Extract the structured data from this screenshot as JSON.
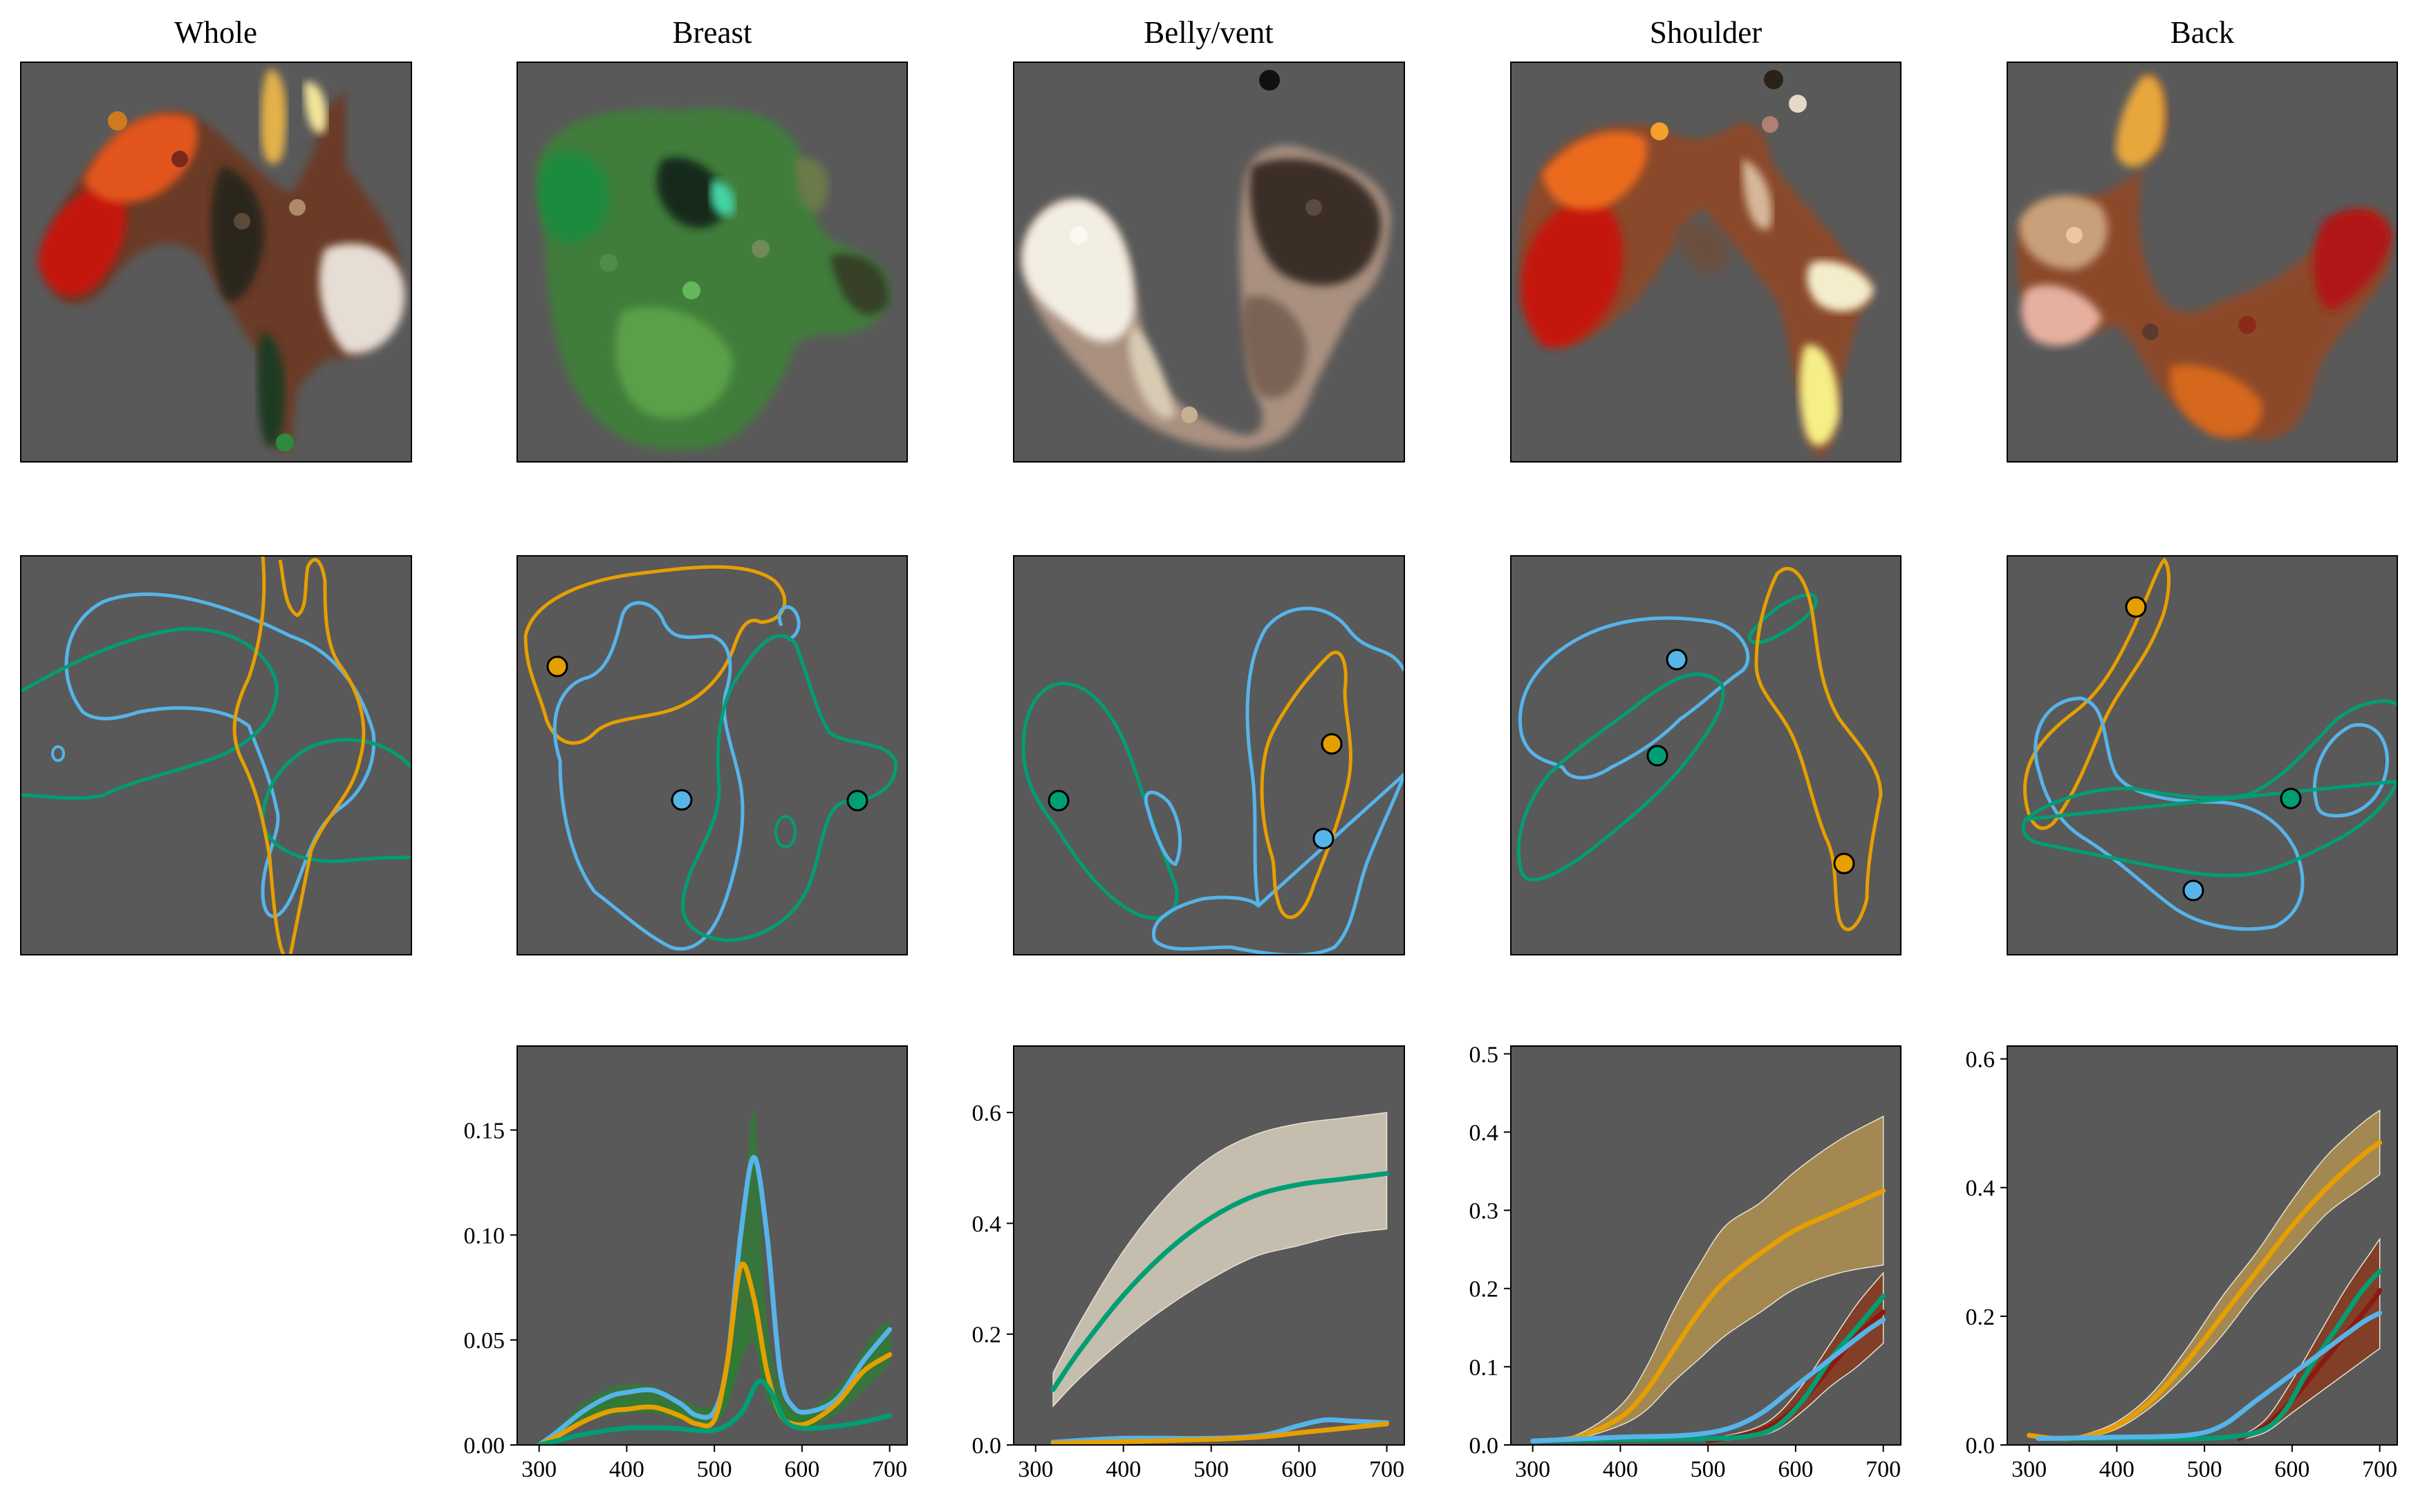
{
  "columns": [
    "Whole",
    "Breast",
    "Belly/vent",
    "Shoulder",
    "Back"
  ],
  "colors": {
    "panel_bg": "#595959",
    "orange": "#E69F00",
    "skyblue": "#56B4E9",
    "green": "#009E73",
    "red": "#8B1A10"
  },
  "chart_data": [
    {
      "type": "line",
      "column": "Breast",
      "xlim": [
        275,
        720
      ],
      "ylim": [
        0,
        0.19
      ],
      "xticks": [
        300,
        400,
        500,
        600,
        700
      ],
      "yticks": [
        0.0,
        0.05,
        0.1,
        0.15
      ],
      "ytick_labels": [
        "0.00",
        "0.05",
        "0.10",
        "0.15"
      ],
      "grid": false,
      "series": [
        {
          "color": "#2E7D32",
          "band": true,
          "x": [
            300,
            320,
            350,
            380,
            400,
            430,
            460,
            490,
            510,
            530,
            545,
            560,
            580,
            600,
            620,
            650,
            680,
            700
          ],
          "y": [
            0.0,
            0.005,
            0.014,
            0.019,
            0.02,
            0.02,
            0.016,
            0.013,
            0.02,
            0.05,
            0.06,
            0.03,
            0.016,
            0.012,
            0.014,
            0.024,
            0.04,
            0.048
          ],
          "band_lo": [
            0.0,
            0.003,
            0.01,
            0.014,
            0.015,
            0.015,
            0.012,
            0.01,
            0.014,
            0.038,
            0.048,
            0.022,
            0.012,
            0.008,
            0.01,
            0.018,
            0.03,
            0.038
          ],
          "band_hi": [
            0.0,
            0.008,
            0.02,
            0.027,
            0.029,
            0.028,
            0.022,
            0.018,
            0.028,
            0.09,
            0.16,
            0.06,
            0.022,
            0.017,
            0.02,
            0.032,
            0.052,
            0.06
          ]
        },
        {
          "color": "#56B4E9",
          "x": [
            300,
            320,
            350,
            380,
            400,
            430,
            460,
            480,
            500,
            515,
            530,
            545,
            560,
            575,
            590,
            610,
            640,
            670,
            700
          ],
          "y": [
            0.0,
            0.006,
            0.016,
            0.023,
            0.025,
            0.026,
            0.02,
            0.014,
            0.016,
            0.04,
            0.1,
            0.137,
            0.1,
            0.035,
            0.018,
            0.016,
            0.022,
            0.04,
            0.055
          ]
        },
        {
          "color": "#E69F00",
          "x": [
            300,
            320,
            350,
            380,
            400,
            430,
            460,
            480,
            500,
            515,
            530,
            545,
            560,
            575,
            590,
            610,
            640,
            670,
            700
          ],
          "y": [
            0.0,
            0.004,
            0.011,
            0.016,
            0.017,
            0.018,
            0.014,
            0.01,
            0.012,
            0.04,
            0.085,
            0.07,
            0.035,
            0.015,
            0.01,
            0.011,
            0.02,
            0.035,
            0.043
          ]
        },
        {
          "color": "#009E73",
          "x": [
            300,
            320,
            350,
            400,
            450,
            500,
            530,
            550,
            565,
            580,
            600,
            640,
            670,
            700
          ],
          "y": [
            0.0,
            0.002,
            0.005,
            0.008,
            0.008,
            0.007,
            0.015,
            0.03,
            0.025,
            0.012,
            0.008,
            0.009,
            0.011,
            0.014
          ]
        }
      ]
    },
    {
      "type": "line",
      "column": "Belly/vent",
      "xlim": [
        275,
        720
      ],
      "ylim": [
        0,
        0.72
      ],
      "xticks": [
        300,
        400,
        500,
        600,
        700
      ],
      "yticks": [
        0.0,
        0.2,
        0.4,
        0.6
      ],
      "ytick_labels": [
        "0.0",
        "0.2",
        "0.4",
        "0.6"
      ],
      "grid": false,
      "series": [
        {
          "color": "#009E73",
          "band": true,
          "band_color": "#D8CFBD",
          "x": [
            320,
            350,
            400,
            450,
            500,
            550,
            600,
            650,
            700
          ],
          "y": [
            0.1,
            0.17,
            0.27,
            0.35,
            0.41,
            0.45,
            0.47,
            0.48,
            0.49
          ],
          "band_lo": [
            0.07,
            0.12,
            0.19,
            0.25,
            0.3,
            0.34,
            0.36,
            0.38,
            0.39
          ],
          "band_hi": [
            0.13,
            0.22,
            0.35,
            0.45,
            0.52,
            0.56,
            0.58,
            0.59,
            0.6
          ]
        },
        {
          "color": "#56B4E9",
          "x": [
            320,
            400,
            500,
            560,
            600,
            630,
            660,
            700
          ],
          "y": [
            0.005,
            0.012,
            0.012,
            0.018,
            0.035,
            0.045,
            0.043,
            0.04
          ]
        },
        {
          "color": "#E69F00",
          "x": [
            320,
            400,
            500,
            560,
            600,
            650,
            700
          ],
          "y": [
            0.003,
            0.006,
            0.01,
            0.015,
            0.022,
            0.03,
            0.038
          ]
        }
      ]
    },
    {
      "type": "line",
      "column": "Shoulder",
      "xlim": [
        275,
        720
      ],
      "ylim": [
        0,
        0.51
      ],
      "xticks": [
        300,
        400,
        500,
        600,
        700
      ],
      "yticks": [
        0.0,
        0.1,
        0.2,
        0.3,
        0.4,
        0.5
      ],
      "ytick_labels": [
        "0.0",
        "0.1",
        "0.2",
        "0.3",
        "0.4",
        "0.5"
      ],
      "grid": false,
      "series": [
        {
          "color": "#E69F00",
          "band": true,
          "band_color": "#B09150",
          "x": [
            300,
            350,
            400,
            430,
            460,
            490,
            520,
            560,
            600,
            650,
            700
          ],
          "y": [
            0.005,
            0.01,
            0.035,
            0.07,
            0.12,
            0.17,
            0.21,
            0.245,
            0.275,
            0.3,
            0.325
          ],
          "band_lo": [
            0.004,
            0.008,
            0.025,
            0.045,
            0.08,
            0.11,
            0.14,
            0.17,
            0.2,
            0.22,
            0.23
          ],
          "band_hi": [
            0.006,
            0.013,
            0.05,
            0.1,
            0.17,
            0.23,
            0.28,
            0.31,
            0.35,
            0.39,
            0.42
          ]
        },
        {
          "color": "#8B1A10",
          "band": true,
          "band_color": "#8A3A1E",
          "x": [
            500,
            550,
            580,
            610,
            640,
            670,
            700
          ],
          "y": [
            0.005,
            0.015,
            0.03,
            0.06,
            0.1,
            0.14,
            0.17
          ],
          "band_lo": [
            0.004,
            0.01,
            0.02,
            0.045,
            0.075,
            0.1,
            0.13
          ],
          "band_hi": [
            0.007,
            0.02,
            0.04,
            0.08,
            0.13,
            0.18,
            0.22
          ]
        },
        {
          "color": "#009E73",
          "x": [
            300,
            400,
            500,
            550,
            580,
            610,
            640,
            670,
            700
          ],
          "y": [
            0.005,
            0.007,
            0.008,
            0.012,
            0.025,
            0.06,
            0.11,
            0.15,
            0.19
          ]
        },
        {
          "color": "#56B4E9",
          "x": [
            300,
            400,
            470,
            520,
            560,
            600,
            640,
            680,
            700
          ],
          "y": [
            0.005,
            0.01,
            0.012,
            0.02,
            0.04,
            0.075,
            0.11,
            0.145,
            0.16
          ]
        }
      ]
    },
    {
      "type": "line",
      "column": "Back",
      "xlim": [
        275,
        720
      ],
      "ylim": [
        0,
        0.62
      ],
      "xticks": [
        300,
        400,
        500,
        600,
        700
      ],
      "yticks": [
        0.0,
        0.2,
        0.4,
        0.6
      ],
      "ytick_labels": [
        "0.0",
        "0.2",
        "0.4",
        "0.6"
      ],
      "grid": false,
      "series": [
        {
          "color": "#E69F00",
          "band": true,
          "band_color": "#B09150",
          "x": [
            300,
            330,
            360,
            400,
            440,
            480,
            520,
            560,
            600,
            640,
            680,
            700
          ],
          "y": [
            0.015,
            0.01,
            0.012,
            0.03,
            0.07,
            0.13,
            0.2,
            0.27,
            0.34,
            0.4,
            0.45,
            0.47
          ],
          "band_lo": [
            0.012,
            0.008,
            0.01,
            0.025,
            0.06,
            0.11,
            0.17,
            0.24,
            0.3,
            0.36,
            0.4,
            0.42
          ],
          "band_hi": [
            0.018,
            0.012,
            0.015,
            0.036,
            0.08,
            0.15,
            0.23,
            0.3,
            0.38,
            0.45,
            0.5,
            0.52
          ]
        },
        {
          "color": "#8B1A10",
          "band": true,
          "band_color": "#8A3A1E",
          "x": [
            540,
            570,
            600,
            630,
            660,
            690,
            700
          ],
          "y": [
            0.01,
            0.03,
            0.07,
            0.12,
            0.17,
            0.22,
            0.24
          ],
          "band_lo": [
            0.008,
            0.02,
            0.05,
            0.08,
            0.11,
            0.14,
            0.15
          ],
          "band_hi": [
            0.012,
            0.04,
            0.1,
            0.17,
            0.24,
            0.3,
            0.32
          ]
        },
        {
          "color": "#009E73",
          "x": [
            310,
            400,
            500,
            560,
            590,
            620,
            650,
            680,
            700
          ],
          "y": [
            0.01,
            0.01,
            0.01,
            0.02,
            0.05,
            0.12,
            0.18,
            0.24,
            0.27
          ]
        },
        {
          "color": "#56B4E9",
          "x": [
            310,
            400,
            480,
            520,
            560,
            600,
            640,
            680,
            700
          ],
          "y": [
            0.01,
            0.012,
            0.015,
            0.03,
            0.07,
            0.11,
            0.15,
            0.19,
            0.205
          ]
        }
      ]
    }
  ]
}
